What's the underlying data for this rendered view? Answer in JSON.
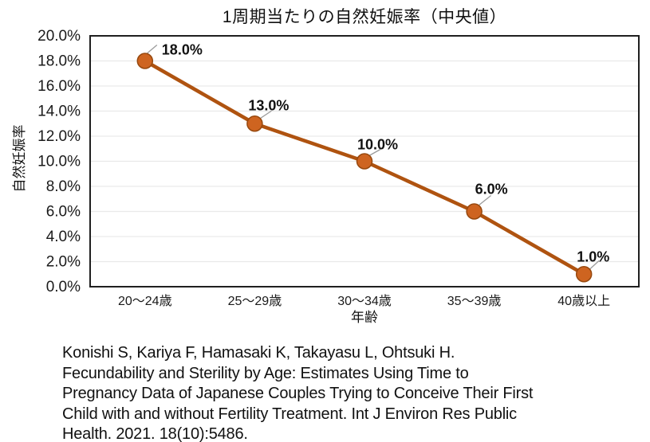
{
  "chart_data": {
    "type": "line",
    "title": "1周期当たりの自然妊娠率（中央値）",
    "categories": [
      "20～24歳",
      "25～29歳",
      "30～34歳",
      "35～39歳",
      "40歳以上"
    ],
    "values": [
      18.0,
      13.0,
      10.0,
      6.0,
      1.0
    ],
    "data_labels": [
      "18.0%",
      "13.0%",
      "10.0%",
      "6.0%",
      "1.0%"
    ],
    "xlabel": "年齢",
    "ylabel": "自然妊娠率",
    "ylim": [
      0,
      20
    ],
    "ytick_step": 2,
    "ytick_labels": [
      "0.0%",
      "2.0%",
      "4.0%",
      "6.0%",
      "8.0%",
      "10.0%",
      "12.0%",
      "14.0%",
      "16.0%",
      "18.0%",
      "20.0%"
    ],
    "grid": true,
    "legend": "none",
    "colors": {
      "line": "#AF5310",
      "marker_fill": "#CE6420",
      "marker_stroke": "#97480E",
      "gridline": "#E9E9E9",
      "plot_border": "#1f1f1f",
      "leader_line": "#9b9b9b",
      "text": "#1a1a1a"
    }
  },
  "citation": {
    "lines": [
      "Konishi S, Kariya F, Hamasaki K, Takayasu L, Ohtsuki H.",
      "Fecundability and Sterility by Age: Estimates Using Time to",
      "Pregnancy Data of Japanese Couples Trying to Conceive Their First",
      "Child with and without Fertility Treatment. Int J Environ Res Public",
      "Health. 2021. 18(10):5486."
    ]
  }
}
